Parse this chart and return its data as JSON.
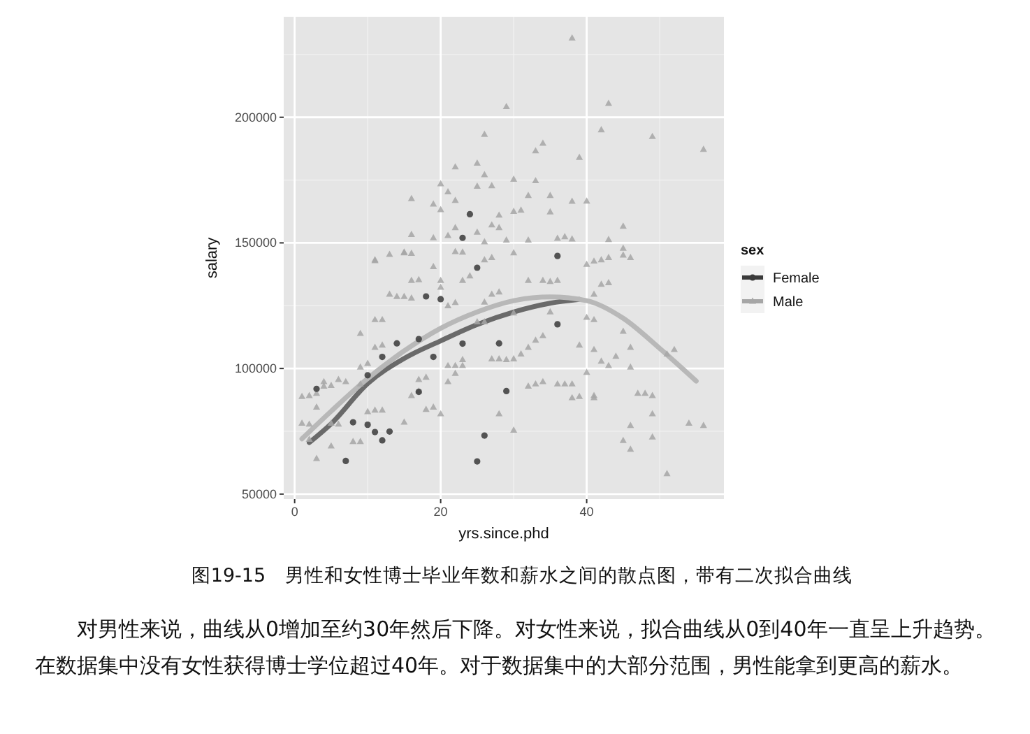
{
  "chart_data": {
    "type": "scatter",
    "xlabel": "yrs.since.phd",
    "ylabel": "salary",
    "legend_title": "sex",
    "legend": "right",
    "grid": true,
    "xlim": [
      -1.5,
      58.8
    ],
    "ylim": [
      48000,
      240000
    ],
    "xticks": [
      0,
      20,
      40
    ],
    "yticks": [
      50000,
      100000,
      150000,
      200000
    ],
    "series": [
      {
        "name": "Female",
        "color": "#3a3a3a",
        "marker": "circle",
        "x": [
          3,
          7,
          8,
          10,
          11,
          12,
          13,
          10,
          12,
          14,
          17,
          17,
          18,
          19,
          20,
          25,
          23,
          26,
          25,
          28,
          29,
          36,
          36,
          24,
          23
        ],
        "values": [
          91900,
          63200,
          78600,
          77600,
          74700,
          71400,
          74900,
          97300,
          104600,
          110000,
          90700,
          111700,
          128700,
          104600,
          127600,
          140100,
          109900,
          73300,
          63000,
          110000,
          91000,
          144800,
          117600,
          161400,
          152000
        ]
      },
      {
        "name": "Male",
        "color": "#a6a6a6",
        "marker": "triangle",
        "x": [
          38,
          29,
          43,
          26,
          42,
          34,
          33,
          39,
          25,
          22,
          26,
          20,
          16,
          21,
          25,
          27,
          30,
          33,
          32,
          35,
          38,
          40,
          22,
          19,
          20,
          28,
          30,
          31,
          35,
          27,
          28,
          22,
          45,
          16,
          19,
          21,
          25,
          29,
          32,
          36,
          37,
          38,
          43,
          45,
          13,
          15,
          16,
          22,
          23,
          11,
          26,
          11,
          15,
          13,
          14,
          15,
          16,
          11,
          12,
          9,
          11,
          12,
          9,
          10,
          1,
          2,
          3,
          4,
          4,
          5,
          6,
          7,
          1,
          2,
          3,
          2,
          3,
          5,
          5,
          6,
          8,
          9,
          10,
          11,
          12,
          9,
          16,
          17,
          18,
          19,
          20,
          15,
          17,
          18,
          21,
          22,
          23,
          22,
          21,
          28,
          30,
          25,
          26,
          27,
          28,
          29,
          30,
          31,
          32,
          33,
          34,
          32,
          33,
          34,
          36,
          37,
          38,
          38,
          39,
          40,
          41,
          39,
          40,
          41,
          41,
          43,
          42,
          40,
          41,
          42,
          43,
          34,
          35,
          36,
          32,
          30,
          27,
          23,
          24,
          21,
          22,
          16,
          17,
          19,
          20,
          20,
          27,
          28,
          26,
          30,
          35,
          23,
          26,
          47,
          48,
          49,
          49,
          46,
          45,
          46,
          49,
          51,
          54,
          56,
          45,
          46,
          46,
          41,
          42,
          43,
          44,
          45,
          46,
          52,
          51,
          41,
          56,
          49
        ],
        "values": [
          231500,
          204200,
          205500,
          193200,
          195000,
          189600,
          186600,
          184000,
          181700,
          180200,
          177100,
          173500,
          167600,
          170300,
          172500,
          172700,
          175300,
          174700,
          168800,
          168800,
          166500,
          166600,
          166900,
          165400,
          163200,
          161000,
          162500,
          163000,
          162300,
          157100,
          156000,
          156000,
          156600,
          153300,
          152000,
          152900,
          154200,
          151100,
          151100,
          151800,
          152400,
          151500,
          151300,
          147800,
          145400,
          146300,
          145800,
          146500,
          146300,
          142900,
          150400,
          143200,
          146000,
          129500,
          128600,
          128600,
          128000,
          119400,
          119400,
          113900,
          108400,
          109300,
          100500,
          102000,
          88800,
          89200,
          90100,
          94700,
          92900,
          93200,
          95600,
          94700,
          78200,
          77800,
          84600,
          71800,
          64100,
          69100,
          78200,
          77800,
          70900,
          70900,
          82800,
          83400,
          83400,
          93800,
          89200,
          91000,
          83700,
          84600,
          81900,
          78600,
          95600,
          96500,
          101100,
          101100,
          101100,
          98000,
          94700,
          81900,
          75400,
          118500,
          118500,
          103800,
          103800,
          103500,
          103800,
          105700,
          108400,
          111200,
          113000,
          92900,
          93800,
          94700,
          93800,
          93800,
          93800,
          88300,
          88800,
          98400,
          89200,
          109300,
          120300,
          119400,
          129500,
          134100,
          133500,
          141400,
          142700,
          143200,
          144100,
          135000,
          134600,
          135000,
          135000,
          146000,
          144100,
          135000,
          136800,
          124900,
          126200,
          135000,
          135300,
          140500,
          135000,
          132300,
          129500,
          130400,
          126400,
          122100,
          122500,
          103500,
          143200,
          90100,
          90100,
          89200,
          81900,
          77300,
          71300,
          67800,
          72700,
          58100,
          78200,
          77300,
          114800,
          108400,
          100500,
          88300,
          102900,
          101100,
          104800,
          145100,
          144100,
          107500,
          105700,
          107500,
          187200,
          192300
        ]
      },
      {
        "type": "line",
        "color": "#6a6a6a",
        "x": [
          2,
          5,
          10,
          15,
          20,
          25,
          30,
          35,
          39
        ],
        "values": [
          70500,
          78000,
          94000,
          104000,
          111000,
          117500,
          122500,
          126000,
          127500
        ]
      },
      {
        "type": "line",
        "color": "#b8b8b8",
        "x": [
          1,
          5,
          10,
          15,
          20,
          25,
          30,
          35,
          40,
          45,
          50,
          55
        ],
        "values": [
          72000,
          83000,
          96000,
          107000,
          116000,
          122500,
          127000,
          128500,
          127000,
          120000,
          108000,
          95000
        ]
      }
    ],
    "annotations": [
      "图19-15　男性和女性博士毕业年数和薪水之间的散点图，带有二次拟合曲线",
      "对男性来说，曲线从0增加至约30年然后下降。对女性来说，拟合曲线从0到40年一直呈上升趋势。在数据集中没有女性获得博士学位超过40年。对于数据集中的大部分范围，男性能拿到更高的薪水。"
    ]
  }
}
